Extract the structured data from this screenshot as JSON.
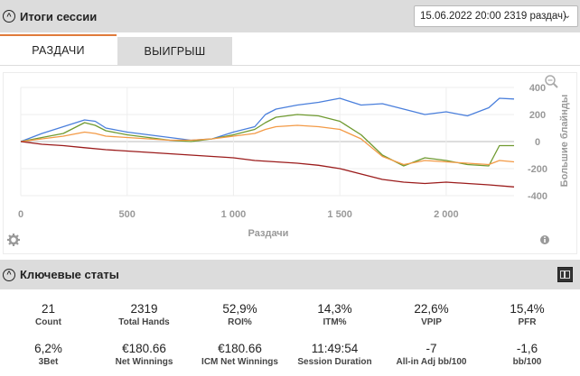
{
  "session_summary": {
    "title": "Итоги сессии",
    "selected_session": "15.06.2022 20:00 2319 раздач)"
  },
  "tabs": [
    {
      "label": "РАЗДАЧИ",
      "active": true
    },
    {
      "label": "ВЫИГРЫШ",
      "active": false
    }
  ],
  "chart_data": {
    "type": "line",
    "xlabel": "Раздачи",
    "ylabel": "Большие блайнды",
    "xlim": [
      0,
      2319
    ],
    "ylim": [
      -400,
      400
    ],
    "x_ticks": [
      "0",
      "500",
      "1 000",
      "1 500",
      "2 000"
    ],
    "y_ticks": [
      "400",
      "200",
      "0",
      "-200",
      "-400"
    ],
    "grid": true,
    "series": [
      {
        "color": "#4a7fdc",
        "x": [
          0,
          100,
          200,
          300,
          350,
          400,
          500,
          600,
          700,
          800,
          900,
          1000,
          1100,
          1150,
          1200,
          1300,
          1400,
          1500,
          1600,
          1700,
          1800,
          1900,
          2000,
          2100,
          2200,
          2250,
          2319
        ],
        "values": [
          0,
          60,
          110,
          160,
          150,
          100,
          70,
          50,
          30,
          10,
          20,
          70,
          110,
          200,
          240,
          270,
          290,
          320,
          270,
          280,
          240,
          200,
          220,
          190,
          250,
          320,
          315
        ]
      },
      {
        "color": "#6f9a30",
        "x": [
          0,
          100,
          200,
          300,
          350,
          400,
          500,
          600,
          700,
          800,
          900,
          1000,
          1100,
          1150,
          1200,
          1300,
          1400,
          1500,
          1600,
          1700,
          1800,
          1900,
          2000,
          2100,
          2200,
          2250,
          2319
        ],
        "values": [
          0,
          30,
          60,
          140,
          120,
          80,
          50,
          30,
          10,
          0,
          20,
          50,
          90,
          140,
          180,
          200,
          190,
          150,
          50,
          -100,
          -180,
          -120,
          -140,
          -170,
          -180,
          -30,
          -30
        ]
      },
      {
        "color": "#f39a46",
        "x": [
          0,
          100,
          200,
          300,
          350,
          400,
          500,
          600,
          700,
          800,
          900,
          1000,
          1100,
          1150,
          1200,
          1300,
          1400,
          1500,
          1600,
          1700,
          1800,
          1900,
          2000,
          2100,
          2200,
          2250,
          2319
        ],
        "values": [
          0,
          20,
          40,
          70,
          60,
          40,
          30,
          20,
          10,
          10,
          20,
          40,
          60,
          90,
          110,
          120,
          110,
          90,
          20,
          -110,
          -170,
          -140,
          -150,
          -160,
          -170,
          -140,
          -150
        ]
      },
      {
        "color": "#9b1b1b",
        "x": [
          0,
          100,
          200,
          300,
          400,
          500,
          600,
          700,
          800,
          900,
          1000,
          1100,
          1200,
          1300,
          1400,
          1500,
          1600,
          1700,
          1800,
          1900,
          2000,
          2100,
          2200,
          2319
        ],
        "values": [
          0,
          -20,
          -30,
          -45,
          -60,
          -70,
          -80,
          -90,
          -100,
          -110,
          -120,
          -140,
          -150,
          -160,
          -175,
          -200,
          -240,
          -280,
          -300,
          -310,
          -300,
          -310,
          -320,
          -335
        ]
      }
    ]
  },
  "key_stats": {
    "title": "Ключевые статы",
    "rows": [
      [
        {
          "value": "21",
          "label": "Count"
        },
        {
          "value": "2319",
          "label": "Total Hands"
        },
        {
          "value": "52,9%",
          "label": "ROI%"
        },
        {
          "value": "14,3%",
          "label": "ITM%"
        },
        {
          "value": "22,6%",
          "label": "VPIP"
        },
        {
          "value": "15,4%",
          "label": "PFR"
        }
      ],
      [
        {
          "value": "6,2%",
          "label": "3Bet"
        },
        {
          "value": "€180.66",
          "label": "Net Winnings"
        },
        {
          "value": "€180.66",
          "label": "ICM Net Winnings"
        },
        {
          "value": "11:49:54",
          "label": "Session Duration"
        },
        {
          "value": "-7",
          "label": "All-in Adj bb/100"
        },
        {
          "value": "-1,6",
          "label": "bb/100"
        }
      ]
    ]
  },
  "icons": {
    "collapse": "chevron-up-icon",
    "zoom": "zoom-out-icon",
    "settings": "gear-icon",
    "info": "info-icon",
    "layout": "layout-columns-icon"
  }
}
